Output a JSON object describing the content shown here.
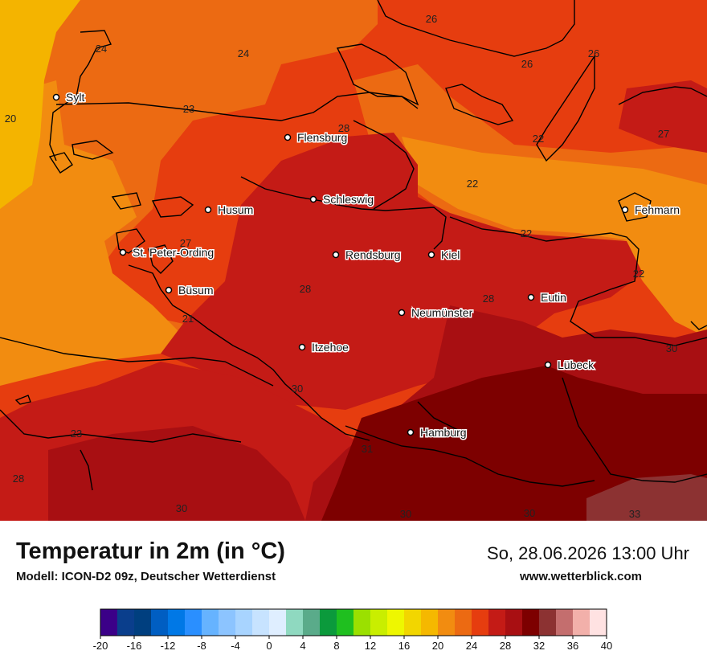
{
  "map": {
    "colors": {
      "c20": "#f4b400",
      "c22": "#f28c10",
      "c24": "#ec6a12",
      "c26": "#e63d0f",
      "c28": "#c41b16",
      "c30": "#a80f12",
      "c32": "#7d0000",
      "c34": "#8c3232"
    },
    "cities": [
      {
        "name": "Sylt"
      },
      {
        "name": "Flensburg"
      },
      {
        "name": "Schleswig"
      },
      {
        "name": "Husum"
      },
      {
        "name": "St. Peter-Ording"
      },
      {
        "name": "Rendsburg"
      },
      {
        "name": "Kiel"
      },
      {
        "name": "Fehmarn"
      },
      {
        "name": "Büsum"
      },
      {
        "name": "Neumünster"
      },
      {
        "name": "Eutin"
      },
      {
        "name": "Itzehoe"
      },
      {
        "name": "Lübeck"
      },
      {
        "name": "Hamburg"
      }
    ],
    "values": [
      "26",
      "24",
      "24",
      "26",
      "26",
      "20",
      "23",
      "28",
      "22",
      "27",
      "22",
      "22",
      "27",
      "28",
      "22",
      "21",
      "28",
      "30",
      "30",
      "23",
      "31",
      "28",
      "30",
      "30",
      "30",
      "33"
    ]
  },
  "footer": {
    "title": "Temperatur in 2m (in °C)",
    "model": "Modell: ICON-D2 09z, Deutscher Wetterdienst",
    "datetime": "So, 28.06.2026 13:00 Uhr",
    "website": "www.wetterblick.com"
  },
  "legend": {
    "colors": [
      "#3b0088",
      "#0a3e8c",
      "#003f7f",
      "#005ec2",
      "#0078e6",
      "#2a8fff",
      "#66b3ff",
      "#8cc4ff",
      "#a8d4ff",
      "#c7e3ff",
      "#dfeeff",
      "#8fd9c0",
      "#5aab8a",
      "#0b9a3c",
      "#1fbf1f",
      "#9be000",
      "#c9ee00",
      "#eef700",
      "#f2d600",
      "#f5b800",
      "#f28c10",
      "#ec6a12",
      "#e63d0f",
      "#c41b16",
      "#a80f12",
      "#7d0000",
      "#8c3232",
      "#c46e6e",
      "#f2b0aa",
      "#ffe2e2"
    ],
    "ticks": [
      "-20",
      "-16",
      "-12",
      "-8",
      "-4",
      "0",
      "4",
      "8",
      "12",
      "16",
      "20",
      "24",
      "28",
      "32",
      "36",
      "40"
    ]
  }
}
